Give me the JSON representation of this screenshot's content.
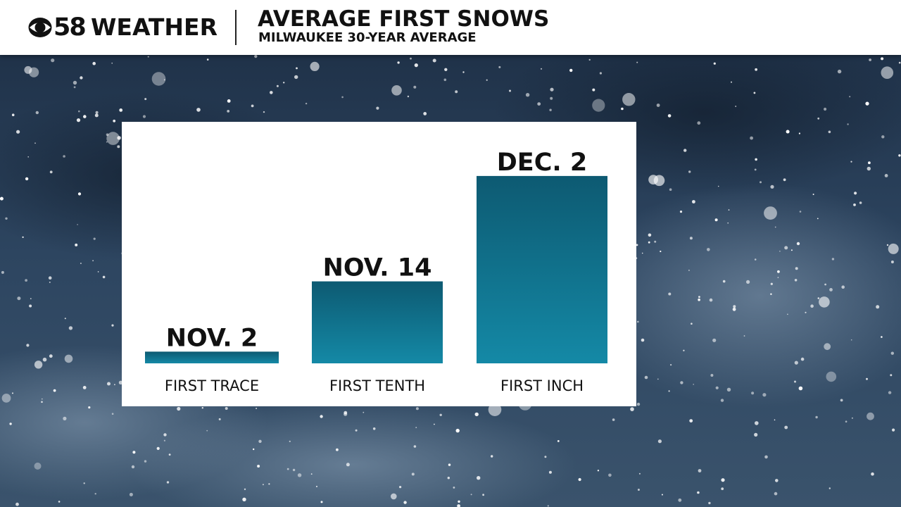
{
  "brand": {
    "logo_number": "58",
    "logo_word": "WEATHER"
  },
  "header": {
    "title": "AVERAGE FIRST SNOWS",
    "subtitle": "MILWAUKEE 30-YEAR AVERAGE"
  },
  "colors": {
    "bar_top": "#0d5a72",
    "bar_bottom": "#1489a6",
    "panel": "#ffffff"
  },
  "chart_data": {
    "type": "bar",
    "title": "AVERAGE FIRST SNOWS",
    "subtitle": "MILWAUKEE 30-YEAR AVERAGE",
    "categories": [
      "FIRST TRACE",
      "FIRST TENTH",
      "FIRST INCH"
    ],
    "values": [
      2,
      14,
      32
    ],
    "value_labels": [
      "NOV. 2",
      "NOV. 14",
      "DEC. 2"
    ],
    "ylim": [
      0,
      38
    ],
    "grid": false,
    "legend": "none"
  }
}
